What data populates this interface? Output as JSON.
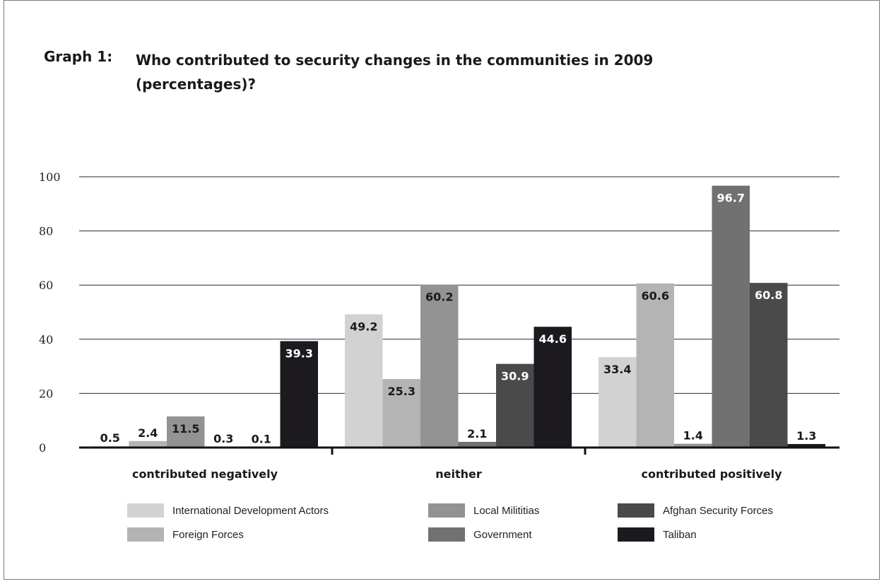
{
  "title": {
    "number": "Graph 1:",
    "text": "Who contributed to security changes in the communities in 2009 (percentages)?"
  },
  "chart_data": {
    "type": "bar",
    "categories": [
      "contributed negatively",
      "neither",
      "contributed positively"
    ],
    "ylim": [
      0,
      100
    ],
    "yticks": [
      0,
      20,
      40,
      60,
      80,
      100
    ],
    "grid": true,
    "legend_position": "bottom",
    "series": [
      {
        "name": "International Development Actors",
        "color": "#d2d2d2",
        "label_color": "#1a1a1a",
        "values": [
          0.5,
          49.2,
          33.4
        ]
      },
      {
        "name": "Foreign Forces",
        "color": "#b4b4b4",
        "label_color": "#1a1a1a",
        "values": [
          2.4,
          25.3,
          60.6
        ]
      },
      {
        "name": "Local Milititias",
        "color": "#939393",
        "label_color": "#1a1a1a",
        "values": [
          11.5,
          60.2,
          1.4
        ]
      },
      {
        "name": "Government",
        "color": "#717171",
        "label_color": "#ffffff",
        "values": [
          0.3,
          2.1,
          96.7
        ]
      },
      {
        "name": "Afghan Security Forces",
        "color": "#4a4a4a",
        "label_color": "#ffffff",
        "values": [
          0.1,
          30.9,
          60.8
        ]
      },
      {
        "name": "Taliban",
        "color": "#1c1a1e",
        "label_color": "#ffffff",
        "values": [
          39.3,
          44.6,
          1.3
        ]
      }
    ]
  }
}
